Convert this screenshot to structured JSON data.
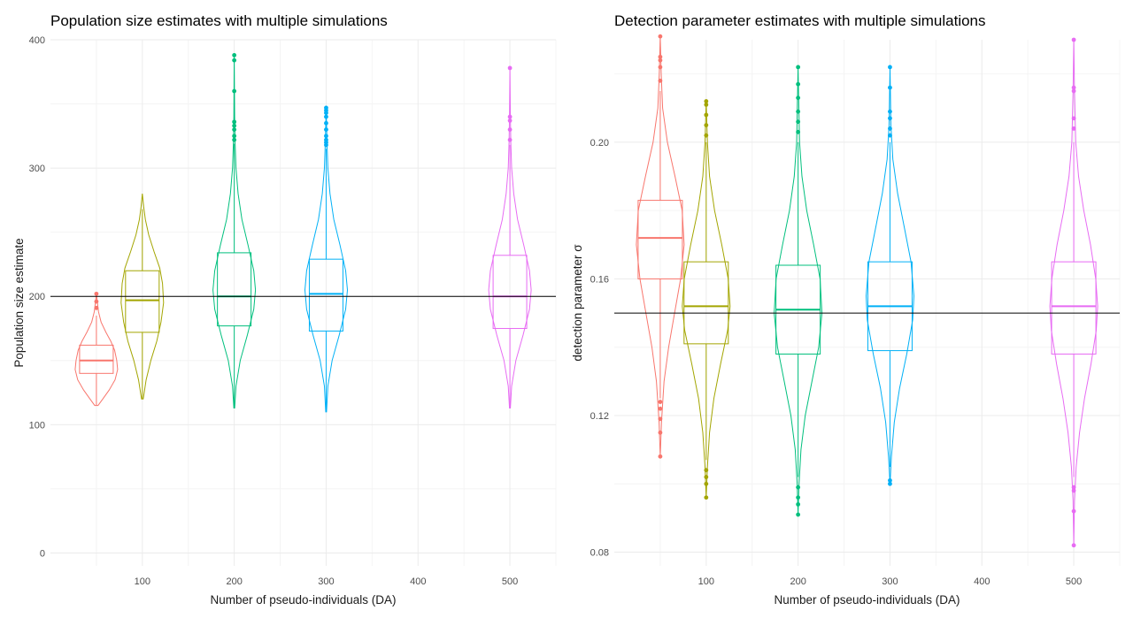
{
  "chart_data": [
    {
      "type": "violin-box",
      "title": "Population size estimates with multiple simulations",
      "xlabel": "Number of pseudo-individuals (DA)",
      "ylabel": "Population size estimate",
      "xlim": [
        0,
        550
      ],
      "ylim": [
        -10,
        400
      ],
      "x_ticks": [
        100,
        200,
        300,
        400,
        500
      ],
      "y_ticks": [
        0,
        100,
        200,
        300,
        400
      ],
      "reference_line": 200,
      "grid": true,
      "legend": "none",
      "series": [
        {
          "x": 50,
          "color": "#F8766D",
          "min": 115,
          "q1": 140,
          "median": 150,
          "q3": 162,
          "max": 185,
          "outliers": [
            191,
            196,
            202
          ],
          "violin_top": 202,
          "density": [
            [
              115,
              0.08
            ],
            [
              120,
              0.3
            ],
            [
              127,
              0.6
            ],
            [
              135,
              0.88
            ],
            [
              143,
              1.0
            ],
            [
              150,
              0.96
            ],
            [
              158,
              0.86
            ],
            [
              165,
              0.68
            ],
            [
              172,
              0.45
            ],
            [
              180,
              0.22
            ],
            [
              188,
              0.1
            ],
            [
              196,
              0.04
            ],
            [
              202,
              0
            ]
          ]
        },
        {
          "x": 100,
          "color": "#A3A500",
          "min": 120,
          "q1": 172,
          "median": 197,
          "q3": 220,
          "max": 268,
          "outliers": [],
          "violin_top": 280,
          "density": [
            [
              120,
              0.04
            ],
            [
              135,
              0.18
            ],
            [
              150,
              0.4
            ],
            [
              165,
              0.68
            ],
            [
              180,
              0.88
            ],
            [
              195,
              1.0
            ],
            [
              210,
              0.95
            ],
            [
              222,
              0.82
            ],
            [
              235,
              0.55
            ],
            [
              248,
              0.3
            ],
            [
              260,
              0.14
            ],
            [
              270,
              0.06
            ],
            [
              280,
              0
            ]
          ]
        },
        {
          "x": 200,
          "color": "#00BF7D",
          "min": 113,
          "q1": 177,
          "median": 200,
          "q3": 234,
          "max": 319,
          "outliers": [
            322,
            325,
            330,
            333,
            336,
            360,
            384,
            388
          ],
          "violin_top": 388,
          "density": [
            [
              113,
              0.02
            ],
            [
              130,
              0.08
            ],
            [
              150,
              0.28
            ],
            [
              170,
              0.62
            ],
            [
              190,
              0.92
            ],
            [
              205,
              1.0
            ],
            [
              220,
              0.92
            ],
            [
              240,
              0.65
            ],
            [
              260,
              0.36
            ],
            [
              280,
              0.18
            ],
            [
              300,
              0.08
            ],
            [
              320,
              0.04
            ],
            [
              340,
              0.02
            ],
            [
              388,
              0
            ]
          ]
        },
        {
          "x": 300,
          "color": "#00B0F6",
          "min": 110,
          "q1": 173,
          "median": 202,
          "q3": 229,
          "max": 315,
          "outliers": [
            318,
            320,
            322,
            325,
            330,
            335,
            340,
            343,
            345,
            347
          ],
          "violin_top": 347,
          "density": [
            [
              110,
              0.02
            ],
            [
              130,
              0.08
            ],
            [
              150,
              0.28
            ],
            [
              170,
              0.62
            ],
            [
              190,
              0.92
            ],
            [
              205,
              1.0
            ],
            [
              220,
              0.92
            ],
            [
              240,
              0.65
            ],
            [
              260,
              0.36
            ],
            [
              280,
              0.18
            ],
            [
              300,
              0.08
            ],
            [
              320,
              0.04
            ],
            [
              347,
              0
            ]
          ]
        },
        {
          "x": 500,
          "color": "#E76BF3",
          "min": 113,
          "q1": 175,
          "median": 200,
          "q3": 232,
          "max": 318,
          "outliers": [
            322,
            330,
            337,
            340,
            378
          ],
          "violin_top": 378,
          "density": [
            [
              113,
              0.02
            ],
            [
              130,
              0.08
            ],
            [
              150,
              0.28
            ],
            [
              170,
              0.62
            ],
            [
              190,
              0.92
            ],
            [
              205,
              1.0
            ],
            [
              220,
              0.92
            ],
            [
              240,
              0.65
            ],
            [
              260,
              0.36
            ],
            [
              280,
              0.18
            ],
            [
              300,
              0.08
            ],
            [
              320,
              0.04
            ],
            [
              340,
              0.02
            ],
            [
              378,
              0
            ]
          ]
        }
      ]
    },
    {
      "type": "violin-box",
      "title": "Detection parameter estimates with multiple simulations",
      "xlabel": "Number of pseudo-individuals (DA)",
      "ylabel": "detection parameter σ",
      "xlim": [
        0,
        550
      ],
      "ylim": [
        0.076,
        0.23
      ],
      "x_ticks": [
        100,
        200,
        300,
        400,
        500
      ],
      "y_ticks": [
        0.08,
        0.12,
        0.16,
        0.2
      ],
      "y_tick_labels": [
        "0.08",
        "0.12",
        "0.16",
        "0.20"
      ],
      "reference_line": 0.15,
      "grid": true,
      "legend": "none",
      "series": [
        {
          "x": 50,
          "color": "#F8766D",
          "min": 0.125,
          "q1": 0.16,
          "median": 0.172,
          "q3": 0.183,
          "max": 0.215,
          "outliers": [
            0.108,
            0.115,
            0.119,
            0.122,
            0.124,
            0.218,
            0.222,
            0.224,
            0.225,
            0.231
          ],
          "violin_top": 0.231,
          "violin_bottom": 0.108,
          "density": [
            [
              0.108,
              0
            ],
            [
              0.118,
              0.05
            ],
            [
              0.13,
              0.16
            ],
            [
              0.14,
              0.35
            ],
            [
              0.15,
              0.6
            ],
            [
              0.16,
              0.85
            ],
            [
              0.17,
              1.0
            ],
            [
              0.18,
              0.92
            ],
            [
              0.19,
              0.62
            ],
            [
              0.2,
              0.3
            ],
            [
              0.21,
              0.1
            ],
            [
              0.22,
              0.04
            ],
            [
              0.231,
              0
            ]
          ]
        },
        {
          "x": 100,
          "color": "#A3A500",
          "min": 0.107,
          "q1": 0.141,
          "median": 0.152,
          "q3": 0.165,
          "max": 0.2,
          "outliers": [
            0.096,
            0.1,
            0.102,
            0.104,
            0.202,
            0.205,
            0.208,
            0.211,
            0.212
          ],
          "violin_top": 0.212,
          "violin_bottom": 0.096,
          "density": [
            [
              0.096,
              0
            ],
            [
              0.105,
              0.05
            ],
            [
              0.115,
              0.14
            ],
            [
              0.125,
              0.32
            ],
            [
              0.135,
              0.6
            ],
            [
              0.145,
              0.9
            ],
            [
              0.152,
              1.0
            ],
            [
              0.16,
              0.92
            ],
            [
              0.17,
              0.65
            ],
            [
              0.18,
              0.35
            ],
            [
              0.19,
              0.14
            ],
            [
              0.2,
              0.05
            ],
            [
              0.212,
              0
            ]
          ]
        },
        {
          "x": 200,
          "color": "#00BF7D",
          "min": 0.102,
          "q1": 0.138,
          "median": 0.151,
          "q3": 0.164,
          "max": 0.2,
          "outliers": [
            0.091,
            0.094,
            0.096,
            0.099,
            0.203,
            0.206,
            0.209,
            0.213,
            0.217,
            0.222
          ],
          "violin_top": 0.222,
          "violin_bottom": 0.091,
          "density": [
            [
              0.091,
              0
            ],
            [
              0.1,
              0.04
            ],
            [
              0.11,
              0.12
            ],
            [
              0.12,
              0.3
            ],
            [
              0.13,
              0.58
            ],
            [
              0.14,
              0.86
            ],
            [
              0.15,
              1.0
            ],
            [
              0.16,
              0.92
            ],
            [
              0.17,
              0.65
            ],
            [
              0.18,
              0.36
            ],
            [
              0.19,
              0.16
            ],
            [
              0.2,
              0.06
            ],
            [
              0.222,
              0
            ]
          ]
        },
        {
          "x": 300,
          "color": "#00B0F6",
          "min": 0.105,
          "q1": 0.139,
          "median": 0.152,
          "q3": 0.165,
          "max": 0.2,
          "outliers": [
            0.1,
            0.101,
            0.202,
            0.204,
            0.207,
            0.209,
            0.216,
            0.222
          ],
          "violin_top": 0.222,
          "violin_bottom": 0.1,
          "density": [
            [
              0.1,
              0
            ],
            [
              0.108,
              0.06
            ],
            [
              0.118,
              0.18
            ],
            [
              0.128,
              0.4
            ],
            [
              0.138,
              0.7
            ],
            [
              0.148,
              0.95
            ],
            [
              0.155,
              1.0
            ],
            [
              0.165,
              0.88
            ],
            [
              0.175,
              0.6
            ],
            [
              0.185,
              0.32
            ],
            [
              0.195,
              0.12
            ],
            [
              0.205,
              0.04
            ],
            [
              0.222,
              0
            ]
          ]
        },
        {
          "x": 500,
          "color": "#E76BF3",
          "min": 0.102,
          "q1": 0.138,
          "median": 0.152,
          "q3": 0.165,
          "max": 0.2,
          "outliers": [
            0.082,
            0.092,
            0.098,
            0.099,
            0.204,
            0.207,
            0.215,
            0.216,
            0.23
          ],
          "violin_top": 0.23,
          "violin_bottom": 0.082,
          "density": [
            [
              0.082,
              0
            ],
            [
              0.095,
              0.03
            ],
            [
              0.105,
              0.1
            ],
            [
              0.115,
              0.24
            ],
            [
              0.125,
              0.45
            ],
            [
              0.135,
              0.72
            ],
            [
              0.145,
              0.94
            ],
            [
              0.152,
              1.0
            ],
            [
              0.16,
              0.92
            ],
            [
              0.17,
              0.7
            ],
            [
              0.18,
              0.42
            ],
            [
              0.19,
              0.2
            ],
            [
              0.2,
              0.08
            ],
            [
              0.215,
              0.03
            ],
            [
              0.23,
              0
            ]
          ]
        }
      ]
    }
  ]
}
